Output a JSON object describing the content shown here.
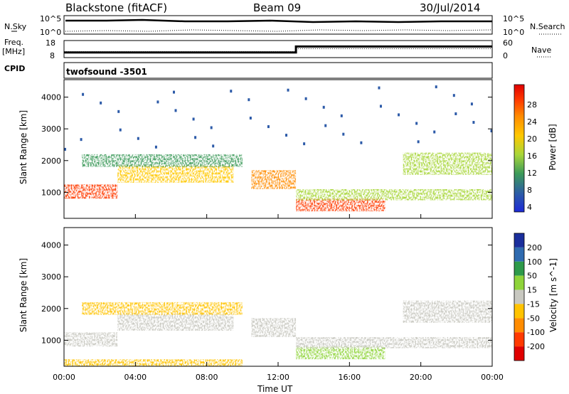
{
  "header": {
    "station": "Blackstone (fitACF)",
    "beam": "Beam 09",
    "date": "30/Jul/2014"
  },
  "noise_panel": {
    "left_label": "N.Sky",
    "right_label": "N.Search",
    "tick_top": "10^5",
    "tick_bottom": "10^0"
  },
  "freq_panel": {
    "left_label_1": "Freq.",
    "left_label_2": "[MHz]",
    "right_label": "Nave",
    "left_ticks": [
      "18",
      "8"
    ],
    "right_ticks": [
      "60",
      "0"
    ],
    "freq_mhz": [
      {
        "t": 0,
        "v": 10.5
      },
      {
        "t": 13,
        "v": 10.5
      },
      {
        "t": 13,
        "v": 14.5
      },
      {
        "t": 24,
        "v": 14.5
      }
    ],
    "nave": [
      {
        "t": 0,
        "v": 18
      },
      {
        "t": 13,
        "v": 18
      },
      {
        "t": 13,
        "v": 30
      },
      {
        "t": 24,
        "v": 30
      }
    ]
  },
  "cpid": {
    "label": "CPID",
    "value": "twofsound -3501"
  },
  "chart_data": [
    {
      "type": "heatmap",
      "name": "power",
      "ylabel": "Slant Range [km]",
      "colorbar_label": "Power [dB]",
      "colorbar_ticks": [
        "28",
        "24",
        "20",
        "16",
        "12",
        "8",
        "4"
      ],
      "colorbar_colors": [
        "#e00000",
        "#ff3a00",
        "#ff8c00",
        "#ffc800",
        "#a8d63a",
        "#3c9a5a",
        "#2c5aa8",
        "#1d2ad8"
      ],
      "xlim_hours": [
        0,
        24
      ],
      "ylim_km": [
        180,
        4550
      ],
      "y_ticks": [
        1000,
        2000,
        3000,
        4000
      ],
      "bands": [
        {
          "t0": 0,
          "t1": 3,
          "r0": 800,
          "r1": 1250,
          "level": 26
        },
        {
          "t0": 3,
          "t1": 9.5,
          "r0": 1300,
          "r1": 1850,
          "level": 18
        },
        {
          "t0": 1,
          "t1": 10,
          "r0": 1800,
          "r1": 2200,
          "level": 11
        },
        {
          "t0": 10.5,
          "t1": 13,
          "r0": 1100,
          "r1": 1700,
          "level": 22
        },
        {
          "t0": 13,
          "t1": 18,
          "r0": 400,
          "r1": 800,
          "level": 26
        },
        {
          "t0": 13,
          "t1": 24,
          "r0": 750,
          "r1": 1100,
          "level": 14
        },
        {
          "t0": 19,
          "t1": 24,
          "r0": 1550,
          "r1": 2250,
          "level": 16
        }
      ]
    },
    {
      "type": "heatmap",
      "name": "velocity",
      "ylabel": "Slant Range [km]",
      "xlabel": "Time UT",
      "colorbar_label": "Velocity [m s^-1]",
      "colorbar_ticks": [
        "200",
        "100",
        "50",
        "15",
        "-15",
        "-50",
        "-100",
        "-200"
      ],
      "colorbar_colors": [
        "#1a2e9c",
        "#2f6bb0",
        "#2e9a4a",
        "#8fd43a",
        "#c8c8c0",
        "#ffc300",
        "#ff8c00",
        "#ff3a00",
        "#e00000"
      ],
      "xlim_hours": [
        0,
        24
      ],
      "ylim_km": [
        180,
        4550
      ],
      "y_ticks": [
        1000,
        2000,
        3000,
        4000
      ],
      "x_ticks": [
        "00:00",
        "04:00",
        "08:00",
        "12:00",
        "16:00",
        "20:00",
        "00:00"
      ]
    }
  ]
}
